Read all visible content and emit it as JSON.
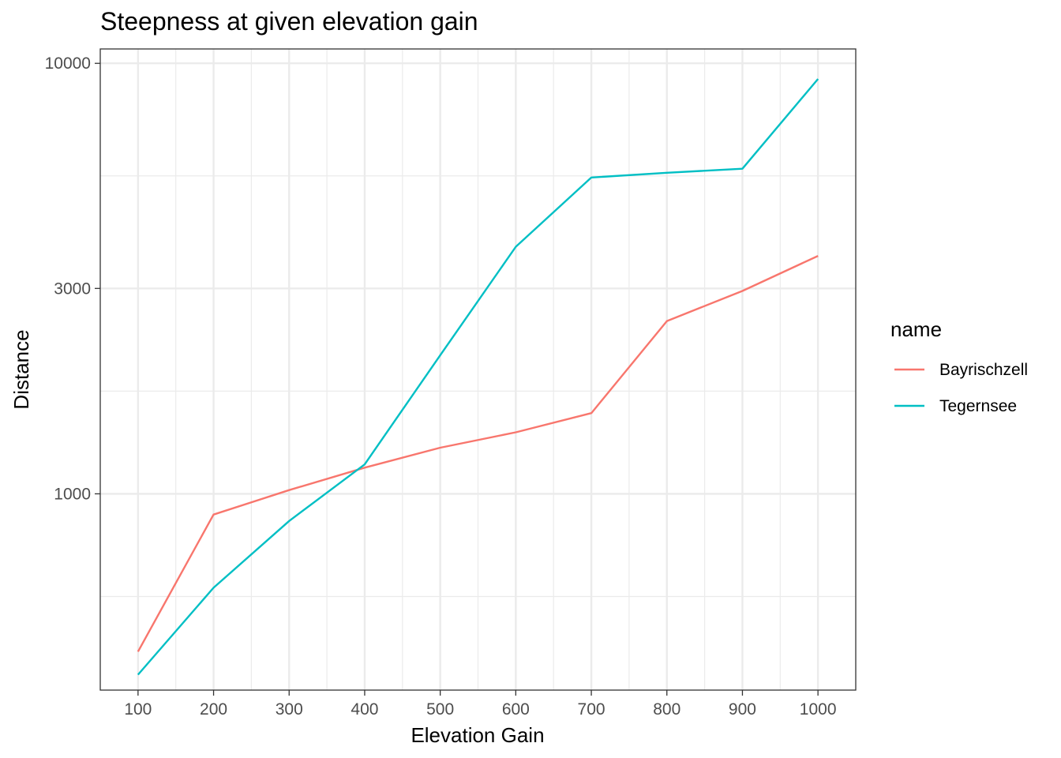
{
  "chart_data": {
    "type": "line",
    "title": "Steepness at given elevation gain",
    "xlabel": "Elevation Gain",
    "ylabel": "Distance",
    "x": [
      100,
      200,
      300,
      400,
      500,
      600,
      700,
      800,
      900,
      1000
    ],
    "x_ticks": [
      "100",
      "200",
      "300",
      "400",
      "500",
      "600",
      "700",
      "800",
      "900",
      "1000"
    ],
    "y_ticks": [
      "1000",
      "3000",
      "10000"
    ],
    "y_scale": "log",
    "xlim": [
      50,
      1050
    ],
    "ylim": [
      350,
      10800
    ],
    "grid": true,
    "legend": {
      "title": "name",
      "position": "right"
    },
    "series": [
      {
        "name": "Bayrischzell",
        "color": "#F8766D",
        "values": [
          430,
          895,
          1020,
          1150,
          1280,
          1390,
          1540,
          2520,
          2960,
          3570
        ]
      },
      {
        "name": "Tegernsee",
        "color": "#00BFC4",
        "values": [
          380,
          605,
          865,
          1170,
          2100,
          3750,
          5430,
          5570,
          5690,
          9200
        ]
      }
    ]
  }
}
